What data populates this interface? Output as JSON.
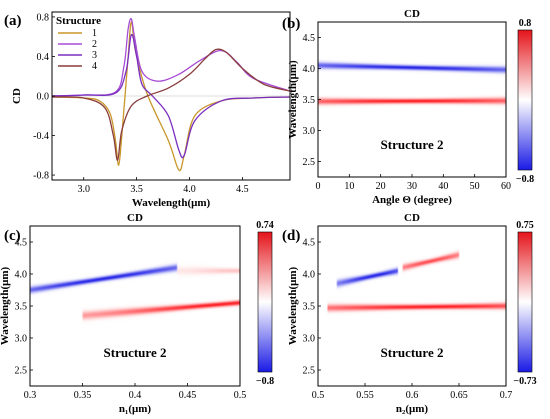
{
  "chart_data": [
    {
      "type": "line",
      "panel": "(a)",
      "title": "",
      "xlabel": "Wavelength(μm)",
      "ylabel": "CD",
      "xlim": [
        2.7,
        4.95
      ],
      "ylim": [
        -0.85,
        0.85
      ],
      "xticks": [
        "3.0",
        "3.5",
        "4.0",
        "4.5"
      ],
      "xtick_values": [
        3.0,
        3.5,
        4.0,
        4.5
      ],
      "yticks": [
        "-0.8",
        "-0.4",
        "0.0",
        "0.4",
        "0.8"
      ],
      "ytick_values": [
        -0.8,
        -0.4,
        0.0,
        0.4,
        0.8
      ],
      "legend_title": "Structure",
      "legend_position": "top-left",
      "grid": false,
      "series": [
        {
          "name": "1",
          "color": "#c8962a",
          "x": [
            2.7,
            3.0,
            3.15,
            3.25,
            3.3,
            3.33,
            3.36,
            3.42,
            3.45,
            3.49,
            3.6,
            3.8,
            3.9,
            3.95,
            4.05,
            4.3,
            4.6,
            4.95
          ],
          "y": [
            -0.01,
            -0.02,
            -0.05,
            -0.18,
            -0.45,
            -0.7,
            -0.4,
            0.4,
            0.75,
            0.45,
            0.02,
            -0.45,
            -0.75,
            -0.6,
            -0.2,
            -0.05,
            -0.02,
            -0.01
          ]
        },
        {
          "name": "2",
          "color": "#a64cd6",
          "x": [
            2.7,
            3.0,
            3.3,
            3.38,
            3.42,
            3.45,
            3.48,
            3.55,
            3.7,
            3.9,
            4.1,
            4.3,
            4.45,
            4.6,
            4.95
          ],
          "y": [
            0.0,
            0.01,
            0.04,
            0.3,
            0.68,
            0.78,
            0.6,
            0.25,
            0.15,
            0.22,
            0.36,
            0.46,
            0.34,
            0.18,
            0.05
          ]
        },
        {
          "name": "3",
          "color": "#7a2fc0",
          "x": [
            2.7,
            3.0,
            3.3,
            3.4,
            3.45,
            3.5,
            3.55,
            3.65,
            3.8,
            3.9,
            3.95,
            4.05,
            4.3,
            4.6,
            4.95
          ],
          "y": [
            0.0,
            0.01,
            0.03,
            0.25,
            0.62,
            0.4,
            0.12,
            0.0,
            -0.2,
            -0.55,
            -0.6,
            -0.25,
            -0.05,
            -0.02,
            -0.01
          ]
        },
        {
          "name": "4",
          "color": "#8a3c3c",
          "x": [
            2.7,
            3.0,
            3.2,
            3.28,
            3.32,
            3.36,
            3.45,
            3.6,
            3.8,
            4.0,
            4.15,
            4.25,
            4.35,
            4.5,
            4.7,
            4.95
          ],
          "y": [
            -0.01,
            -0.02,
            -0.12,
            -0.4,
            -0.65,
            -0.35,
            -0.1,
            0.0,
            0.08,
            0.22,
            0.38,
            0.47,
            0.44,
            0.28,
            0.12,
            0.05
          ]
        }
      ]
    },
    {
      "type": "heatmap",
      "panel": "(b)",
      "title": "CD",
      "xlabel": "Angle Θ (degree)",
      "ylabel": "Wavelength(μm)",
      "xlim": [
        0,
        60
      ],
      "ylim": [
        2.25,
        4.75
      ],
      "xticks": [
        "0",
        "10",
        "20",
        "30",
        "40",
        "50",
        "60"
      ],
      "xtick_values": [
        0,
        10,
        20,
        30,
        40,
        50,
        60
      ],
      "yticks": [
        "2.5",
        "3.0",
        "3.5",
        "4.0",
        "4.5"
      ],
      "ytick_values": [
        2.5,
        3.0,
        3.5,
        4.0,
        4.5
      ],
      "annotation": "Structure 2",
      "colorbar": {
        "max_label": "0.8",
        "min_label": "−0.8",
        "max": 0.8,
        "min": -0.8
      },
      "features": [
        {
          "sign": "negative",
          "x_range": [
            0,
            60
          ],
          "y_center": [
            4.05,
            3.98
          ],
          "peak_at_x": 30,
          "peak_value": -0.8
        },
        {
          "sign": "positive",
          "x_range": [
            0,
            60
          ],
          "y_center": [
            3.47,
            3.48
          ],
          "peak_at_x": 30,
          "peak_value": 0.8
        }
      ]
    },
    {
      "type": "heatmap",
      "panel": "(c)",
      "title": "CD",
      "xlabel": "n₁(μm)",
      "ylabel": "Wavelength(μm)",
      "xlim": [
        0.3,
        0.5
      ],
      "ylim": [
        2.25,
        4.75
      ],
      "xticks": [
        "0.3",
        "0.35",
        "0.4",
        "0.45",
        "0.5"
      ],
      "xtick_values": [
        0.3,
        0.35,
        0.4,
        0.45,
        0.5
      ],
      "yticks": [
        "2.5",
        "3.0",
        "3.5",
        "4.0",
        "4.5"
      ],
      "ytick_values": [
        2.5,
        3.0,
        3.5,
        4.0,
        4.5
      ],
      "annotation": "Structure 2",
      "colorbar": {
        "max_label": "0.74",
        "min_label": "−0.8",
        "max": 0.74,
        "min": -0.8
      },
      "features": [
        {
          "sign": "negative",
          "x_range": [
            0.3,
            0.44
          ],
          "y_center": [
            3.75,
            4.1
          ],
          "peak_at_x": 0.37,
          "peak_value": -0.8
        },
        {
          "sign": "positive",
          "x_range": [
            0.35,
            0.5
          ],
          "y_center": [
            3.35,
            3.55
          ],
          "peak_at_x": 0.48,
          "peak_value": 0.74
        },
        {
          "sign": "positive",
          "x_range": [
            0.44,
            0.5
          ],
          "y_center": [
            4.05,
            4.05
          ],
          "peak_at_x": 0.5,
          "peak_value": 0.2
        }
      ]
    },
    {
      "type": "heatmap",
      "panel": "(d)",
      "title": "CD",
      "xlabel": "n₂(μm)",
      "ylabel": "Wavelength(μm)",
      "xlim": [
        0.5,
        0.7
      ],
      "ylim": [
        2.25,
        4.75
      ],
      "xticks": [
        "0.5",
        "0.55",
        "0.6",
        "0.65",
        "0.7"
      ],
      "xtick_values": [
        0.5,
        0.55,
        0.6,
        0.65,
        0.7
      ],
      "yticks": [
        "2.5",
        "3.0",
        "3.5",
        "4.0",
        "4.5"
      ],
      "ytick_values": [
        2.5,
        3.0,
        3.5,
        4.0,
        4.5
      ],
      "annotation": "Structure 2",
      "colorbar": {
        "max_label": "0.75",
        "min_label": "−0.73",
        "max": 0.75,
        "min": -0.73
      },
      "features": [
        {
          "sign": "negative",
          "x_range": [
            0.52,
            0.585
          ],
          "y_center": [
            3.85,
            4.05
          ],
          "peak_at_x": 0.56,
          "peak_value": -0.73
        },
        {
          "sign": "positive",
          "x_range": [
            0.59,
            0.65
          ],
          "y_center": [
            4.1,
            4.3
          ],
          "peak_at_x": 0.62,
          "peak_value": 0.6
        },
        {
          "sign": "positive",
          "x_range": [
            0.51,
            0.7
          ],
          "y_center": [
            3.47,
            3.5
          ],
          "peak_at_x": 0.62,
          "peak_value": 0.75
        }
      ]
    }
  ]
}
